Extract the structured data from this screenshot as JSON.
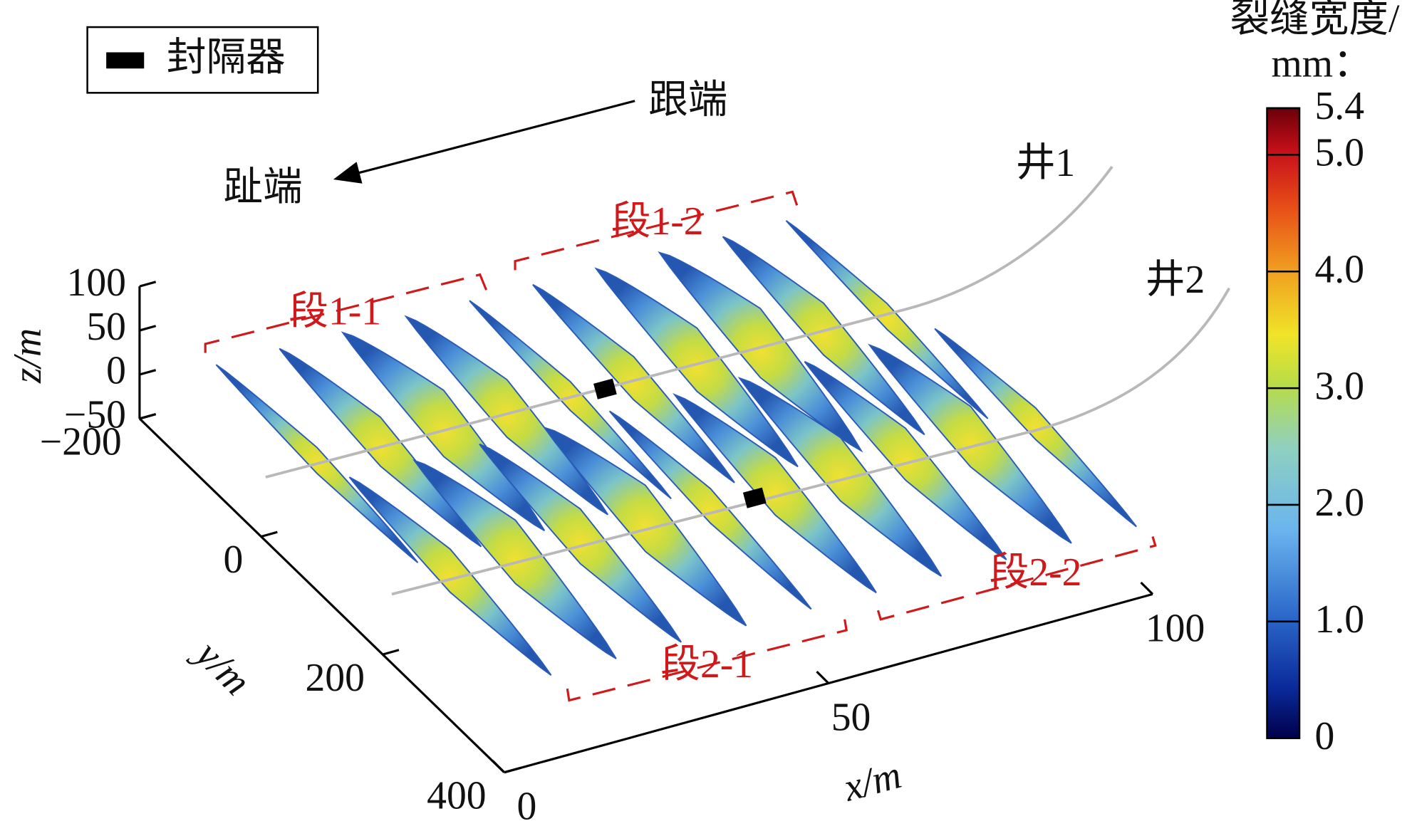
{
  "chart_data": {
    "type": "fracture3d",
    "legend": {
      "label": "封隔器"
    },
    "annotations": {
      "heel": "跟端",
      "toe": "趾端",
      "well1": "井1",
      "well2": "井2",
      "stages": [
        "段1-1",
        "段1-2",
        "段2-1",
        "段2-2"
      ]
    },
    "xlabel": "x/m",
    "ylabel": "y/m",
    "zlabel": "z/m",
    "xlim": [
      0,
      100
    ],
    "xticks": [
      0,
      50,
      100
    ],
    "ylim": [
      -200,
      400
    ],
    "yticks": [
      {
        "value": -200,
        "label": "−200"
      },
      0,
      200,
      400
    ],
    "zlim": [
      -50,
      100
    ],
    "zticks": [
      100,
      50,
      0,
      {
        "value": -50,
        "label": "−50"
      }
    ],
    "colorbar": {
      "title": [
        "裂缝宽度/",
        "mm："
      ],
      "clim": [
        0,
        5.4
      ],
      "ticks": [
        0,
        {
          "value": 1,
          "label": "1.0"
        },
        {
          "value": 2,
          "label": "2.0"
        },
        {
          "value": 3,
          "label": "3.0"
        },
        {
          "value": 4,
          "label": "4.0"
        },
        {
          "value": 5,
          "label": "5.0"
        },
        5.4
      ]
    }
  }
}
